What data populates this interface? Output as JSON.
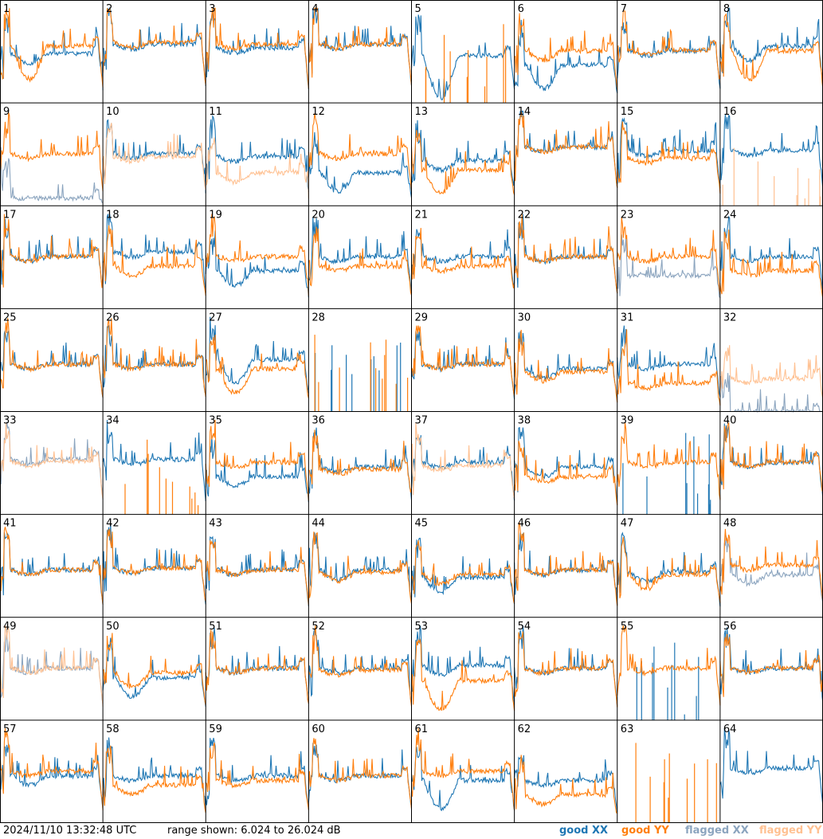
{
  "footer": {
    "timestamp": "2024/11/10 13:32:48 UTC",
    "range_text": "range shown: 6.024 to 26.024 dB"
  },
  "legend": {
    "good_xx": "good XX",
    "good_yy": "good YY",
    "flagged_xx": "flagged XX",
    "flagged_yy": "flagged YY"
  },
  "colors": {
    "good_xx": "#1f77b4",
    "good_yy": "#ff7f0e",
    "flagged_xx": "#8ca5bf",
    "flagged_yy": "#ffc192",
    "grid": "#000000",
    "background": "#ffffff"
  },
  "chart_data": {
    "type": "line",
    "description_units": "dB",
    "ylim": [
      6.024,
      26.024
    ],
    "grid": "8x8 panels",
    "series_names": [
      "good XX",
      "good YY",
      "flagged XX",
      "flagged YY"
    ],
    "panels": [
      {
        "id": "1",
        "xx": "good",
        "yy": "good",
        "xx_level": 0.52,
        "yy_level": 0.6,
        "xx_dip": 0.1,
        "yy_dip": 0.35
      },
      {
        "id": "2",
        "xx": "good",
        "yy": "good",
        "xx_level": 0.62,
        "yy_level": 0.64,
        "xx_dip": 0.05,
        "yy_dip": 0.05
      },
      {
        "id": "3",
        "xx": "good",
        "yy": "good",
        "xx_level": 0.58,
        "yy_level": 0.62,
        "xx_dip": 0.05,
        "yy_dip": 0.05
      },
      {
        "id": "4",
        "xx": "good",
        "yy": "good",
        "xx_level": 0.62,
        "yy_level": 0.62,
        "xx_dip": 0.05,
        "yy_dip": 0.05
      },
      {
        "id": "5",
        "xx": "good",
        "yy": "spikes",
        "xx_level": 0.5,
        "yy_level": 0.0,
        "xx_dip": 0.45,
        "yy_dip": 0.0
      },
      {
        "id": "6",
        "xx": "good",
        "yy": "good",
        "xx_level": 0.4,
        "yy_level": 0.55,
        "xx_dip": 0.25,
        "yy_dip": 0.1
      },
      {
        "id": "7",
        "xx": "good",
        "yy": "good",
        "xx_level": 0.55,
        "yy_level": 0.56,
        "xx_dip": 0.05,
        "yy_dip": 0.05
      },
      {
        "id": "8",
        "xx": "good",
        "yy": "good",
        "xx_level": 0.6,
        "yy_level": 0.55,
        "xx_dip": 0.15,
        "yy_dip": 0.3
      },
      {
        "id": "9",
        "xx": "flagged",
        "yy": "good",
        "xx_level": 0.08,
        "yy_level": 0.55,
        "xx_dip": 0.0,
        "yy_dip": 0.05
      },
      {
        "id": "10",
        "xx": "good",
        "yy": "flagged",
        "xx_level": 0.55,
        "yy_level": 0.52,
        "xx_dip": 0.05,
        "yy_dip": 0.05
      },
      {
        "id": "11",
        "xx": "good",
        "yy": "flagged",
        "xx_level": 0.52,
        "yy_level": 0.35,
        "xx_dip": 0.05,
        "yy_dip": 0.1
      },
      {
        "id": "12",
        "xx": "good",
        "yy": "good",
        "xx_level": 0.35,
        "yy_level": 0.55,
        "xx_dip": 0.2,
        "yy_dip": 0.05
      },
      {
        "id": "13",
        "xx": "good",
        "yy": "good",
        "xx_level": 0.48,
        "yy_level": 0.38,
        "xx_dip": 0.1,
        "yy_dip": 0.25
      },
      {
        "id": "14",
        "xx": "good",
        "yy": "good",
        "xx_level": 0.62,
        "yy_level": 0.62,
        "xx_dip": 0.05,
        "yy_dip": 0.05
      },
      {
        "id": "15",
        "xx": "good",
        "yy": "good",
        "xx_level": 0.58,
        "yy_level": 0.5,
        "xx_dip": 0.05,
        "yy_dip": 0.05
      },
      {
        "id": "16",
        "xx": "good",
        "yy": "spikes_flagged",
        "xx_level": 0.58,
        "yy_level": 0.0,
        "xx_dip": 0.05,
        "yy_dip": 0.0
      },
      {
        "id": "17",
        "xx": "good",
        "yy": "good",
        "xx_level": 0.55,
        "yy_level": 0.55,
        "xx_dip": 0.05,
        "yy_dip": 0.05
      },
      {
        "id": "18",
        "xx": "good",
        "yy": "good",
        "xx_level": 0.6,
        "yy_level": 0.45,
        "xx_dip": 0.05,
        "yy_dip": 0.1
      },
      {
        "id": "19",
        "xx": "good",
        "yy": "good",
        "xx_level": 0.4,
        "yy_level": 0.55,
        "xx_dip": 0.15,
        "yy_dip": 0.05
      },
      {
        "id": "20",
        "xx": "good",
        "yy": "good",
        "xx_level": 0.55,
        "yy_level": 0.45,
        "xx_dip": 0.05,
        "yy_dip": 0.05
      },
      {
        "id": "21",
        "xx": "good",
        "yy": "good",
        "xx_level": 0.55,
        "yy_level": 0.45,
        "xx_dip": 0.05,
        "yy_dip": 0.05
      },
      {
        "id": "22",
        "xx": "good",
        "yy": "good",
        "xx_level": 0.55,
        "yy_level": 0.55,
        "xx_dip": 0.05,
        "yy_dip": 0.05
      },
      {
        "id": "23",
        "xx": "flagged",
        "yy": "good",
        "xx_level": 0.35,
        "yy_level": 0.55,
        "xx_dip": 0.0,
        "yy_dip": 0.05
      },
      {
        "id": "24",
        "xx": "good",
        "yy": "good",
        "xx_level": 0.55,
        "yy_level": 0.4,
        "xx_dip": 0.05,
        "yy_dip": 0.05
      },
      {
        "id": "25",
        "xx": "good",
        "yy": "good",
        "xx_level": 0.5,
        "yy_level": 0.5,
        "xx_dip": 0.05,
        "yy_dip": 0.05
      },
      {
        "id": "26",
        "xx": "good",
        "yy": "good",
        "xx_level": 0.5,
        "yy_level": 0.5,
        "xx_dip": 0.05,
        "yy_dip": 0.05
      },
      {
        "id": "27",
        "xx": "good",
        "yy": "good",
        "xx_level": 0.55,
        "yy_level": 0.45,
        "xx_dip": 0.25,
        "yy_dip": 0.25
      },
      {
        "id": "28",
        "xx": "spikes",
        "yy": "spikes",
        "xx_level": 0.0,
        "yy_level": 0.0,
        "xx_dip": 0.0,
        "yy_dip": 0.0
      },
      {
        "id": "29",
        "xx": "good",
        "yy": "good",
        "xx_level": 0.5,
        "yy_level": 0.5,
        "xx_dip": 0.05,
        "yy_dip": 0.05
      },
      {
        "id": "30",
        "xx": "good",
        "yy": "good",
        "xx_level": 0.45,
        "yy_level": 0.42,
        "xx_dip": 0.1,
        "yy_dip": 0.1
      },
      {
        "id": "31",
        "xx": "good",
        "yy": "good",
        "xx_level": 0.5,
        "yy_level": 0.3,
        "xx_dip": 0.05,
        "yy_dip": 0.05
      },
      {
        "id": "32",
        "xx": "flagged",
        "yy": "flagged",
        "xx_level": 0.0,
        "yy_level": 0.35,
        "xx_dip": 0.0,
        "yy_dip": 0.05
      },
      {
        "id": "33",
        "xx": "flagged",
        "yy": "flagged",
        "xx_level": 0.58,
        "yy_level": 0.56,
        "xx_dip": 0.05,
        "yy_dip": 0.05
      },
      {
        "id": "34",
        "xx": "good",
        "yy": "spikes",
        "xx_level": 0.58,
        "yy_level": 0.0,
        "xx_dip": 0.05,
        "yy_dip": 0.0
      },
      {
        "id": "35",
        "xx": "good",
        "yy": "good",
        "xx_level": 0.4,
        "yy_level": 0.55,
        "xx_dip": 0.1,
        "yy_dip": 0.05
      },
      {
        "id": "36",
        "xx": "good",
        "yy": "good",
        "xx_level": 0.5,
        "yy_level": 0.48,
        "xx_dip": 0.05,
        "yy_dip": 0.05
      },
      {
        "id": "37",
        "xx": "good",
        "yy": "flagged",
        "xx_level": 0.55,
        "yy_level": 0.52,
        "xx_dip": 0.05,
        "yy_dip": 0.05
      },
      {
        "id": "38",
        "xx": "good",
        "yy": "good",
        "xx_level": 0.5,
        "yy_level": 0.4,
        "xx_dip": 0.1,
        "yy_dip": 0.05
      },
      {
        "id": "39",
        "xx": "spikes",
        "yy": "good",
        "xx_level": 0.0,
        "yy_level": 0.55,
        "xx_dip": 0.0,
        "yy_dip": 0.05
      },
      {
        "id": "40",
        "xx": "good",
        "yy": "good",
        "xx_level": 0.55,
        "yy_level": 0.55,
        "xx_dip": 0.05,
        "yy_dip": 0.05
      },
      {
        "id": "41",
        "xx": "good",
        "yy": "good",
        "xx_level": 0.5,
        "yy_level": 0.5,
        "xx_dip": 0.05,
        "yy_dip": 0.05
      },
      {
        "id": "42",
        "xx": "good",
        "yy": "good",
        "xx_level": 0.52,
        "yy_level": 0.52,
        "xx_dip": 0.05,
        "yy_dip": 0.05
      },
      {
        "id": "43",
        "xx": "good",
        "yy": "good",
        "xx_level": 0.5,
        "yy_level": 0.5,
        "xx_dip": 0.05,
        "yy_dip": 0.05
      },
      {
        "id": "44",
        "xx": "good",
        "yy": "good",
        "xx_level": 0.5,
        "yy_level": 0.48,
        "xx_dip": 0.1,
        "yy_dip": 0.1
      },
      {
        "id": "45",
        "xx": "good",
        "yy": "good",
        "xx_level": 0.42,
        "yy_level": 0.45,
        "xx_dip": 0.15,
        "yy_dip": 0.1
      },
      {
        "id": "46",
        "xx": "good",
        "yy": "good",
        "xx_level": 0.5,
        "yy_level": 0.5,
        "xx_dip": 0.05,
        "yy_dip": 0.05
      },
      {
        "id": "47",
        "xx": "good",
        "yy": "good",
        "xx_level": 0.48,
        "yy_level": 0.45,
        "xx_dip": 0.1,
        "yy_dip": 0.15
      },
      {
        "id": "48",
        "xx": "flagged",
        "yy": "good",
        "xx_level": 0.45,
        "yy_level": 0.55,
        "xx_dip": 0.1,
        "yy_dip": 0.05
      },
      {
        "id": "49",
        "xx": "flagged",
        "yy": "flagged",
        "xx_level": 0.55,
        "yy_level": 0.55,
        "xx_dip": 0.05,
        "yy_dip": 0.05
      },
      {
        "id": "50",
        "xx": "good",
        "yy": "good",
        "xx_level": 0.45,
        "yy_level": 0.5,
        "xx_dip": 0.2,
        "yy_dip": 0.15
      },
      {
        "id": "51",
        "xx": "good",
        "yy": "good",
        "xx_level": 0.55,
        "yy_level": 0.55,
        "xx_dip": 0.05,
        "yy_dip": 0.05
      },
      {
        "id": "52",
        "xx": "good",
        "yy": "good",
        "xx_level": 0.55,
        "yy_level": 0.53,
        "xx_dip": 0.05,
        "yy_dip": 0.05
      },
      {
        "id": "53",
        "xx": "good",
        "yy": "good",
        "xx_level": 0.58,
        "yy_level": 0.42,
        "xx_dip": 0.1,
        "yy_dip": 0.3
      },
      {
        "id": "54",
        "xx": "good",
        "yy": "good",
        "xx_level": 0.55,
        "yy_level": 0.55,
        "xx_dip": 0.05,
        "yy_dip": 0.05
      },
      {
        "id": "55",
        "xx": "spikes",
        "yy": "good",
        "xx_level": 0.0,
        "yy_level": 0.55,
        "xx_dip": 0.0,
        "yy_dip": 0.05
      },
      {
        "id": "56",
        "xx": "good",
        "yy": "good",
        "xx_level": 0.55,
        "yy_level": 0.55,
        "xx_dip": 0.05,
        "yy_dip": 0.05
      },
      {
        "id": "57",
        "xx": "good",
        "yy": "good",
        "xx_level": 0.5,
        "yy_level": 0.55,
        "xx_dip": 0.1,
        "yy_dip": 0.05
      },
      {
        "id": "58",
        "xx": "good",
        "yy": "good",
        "xx_level": 0.5,
        "yy_level": 0.4,
        "xx_dip": 0.05,
        "yy_dip": 0.1
      },
      {
        "id": "59",
        "xx": "good",
        "yy": "good",
        "xx_level": 0.5,
        "yy_level": 0.45,
        "xx_dip": 0.05,
        "yy_dip": 0.05
      },
      {
        "id": "60",
        "xx": "good",
        "yy": "good",
        "xx_level": 0.5,
        "yy_level": 0.5,
        "xx_dip": 0.05,
        "yy_dip": 0.05
      },
      {
        "id": "61",
        "xx": "good",
        "yy": "good",
        "xx_level": 0.45,
        "yy_level": 0.55,
        "xx_dip": 0.3,
        "yy_dip": 0.05
      },
      {
        "id": "62",
        "xx": "good",
        "yy": "good",
        "xx_level": 0.45,
        "yy_level": 0.3,
        "xx_dip": 0.05,
        "yy_dip": 0.1
      },
      {
        "id": "63",
        "xx": "none",
        "yy": "spikes",
        "xx_level": 0.0,
        "yy_level": 0.0,
        "xx_dip": 0.0,
        "yy_dip": 0.0
      },
      {
        "id": "64",
        "xx": "good",
        "yy": "none",
        "xx_level": 0.58,
        "yy_level": 0.0,
        "xx_dip": 0.05,
        "yy_dip": 0.0
      }
    ]
  }
}
